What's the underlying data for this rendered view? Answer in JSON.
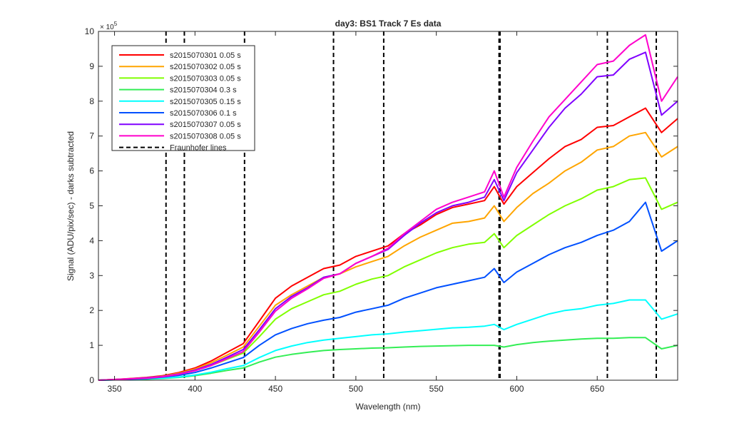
{
  "chart_data": {
    "type": "line",
    "title": "day3: BS1  Track 7 Es data",
    "xlabel": "Wavelength (nm)",
    "ylabel": "Signal (ADU/pix/sec) - darks subtracted",
    "y_exponent_label": "× 10",
    "y_exponent_power": "5",
    "xlim": [
      340,
      700
    ],
    "ylim": [
      0,
      10
    ],
    "y_scale_factor": 100000,
    "xticks": [
      350,
      400,
      450,
      500,
      550,
      600,
      650
    ],
    "yticks": [
      0,
      1,
      2,
      3,
      4,
      5,
      6,
      7,
      8,
      9,
      10
    ],
    "grid": false,
    "legend_position": "top-left",
    "fraunhofer_label": "Fraunhofer lines",
    "fraunhofer_lines": [
      382.0,
      393.4,
      430.8,
      486.1,
      517.3,
      589.0,
      589.6,
      656.3,
      686.7
    ],
    "x": [
      340,
      350,
      360,
      370,
      380,
      390,
      400,
      410,
      420,
      430,
      440,
      450,
      460,
      470,
      480,
      490,
      500,
      510,
      520,
      530,
      540,
      550,
      560,
      570,
      580,
      586,
      592,
      600,
      610,
      620,
      630,
      640,
      650,
      660,
      670,
      680,
      690,
      700
    ],
    "series": [
      {
        "name": "s2015070301 0.05 s",
        "color": "#ff0000",
        "values": [
          0.0,
          0.02,
          0.05,
          0.08,
          0.13,
          0.22,
          0.35,
          0.55,
          0.8,
          1.05,
          1.7,
          2.35,
          2.7,
          2.95,
          3.2,
          3.3,
          3.55,
          3.7,
          3.85,
          4.2,
          4.45,
          4.75,
          4.95,
          5.05,
          5.15,
          5.55,
          5.05,
          5.55,
          5.95,
          6.35,
          6.7,
          6.9,
          7.25,
          7.3,
          7.55,
          7.8,
          7.1,
          7.5
        ]
      },
      {
        "name": "s2015070302 0.05 s",
        "color": "#ffa500",
        "values": [
          0.0,
          0.02,
          0.04,
          0.07,
          0.12,
          0.2,
          0.32,
          0.5,
          0.72,
          0.95,
          1.55,
          2.15,
          2.45,
          2.7,
          2.95,
          3.05,
          3.25,
          3.4,
          3.55,
          3.85,
          4.1,
          4.3,
          4.5,
          4.55,
          4.65,
          5.0,
          4.55,
          4.95,
          5.35,
          5.65,
          6.0,
          6.25,
          6.6,
          6.7,
          7.0,
          7.1,
          6.4,
          6.7
        ]
      },
      {
        "name": "s2015070303 0.05 s",
        "color": "#80ff00",
        "values": [
          0.0,
          0.02,
          0.04,
          0.06,
          0.1,
          0.17,
          0.28,
          0.42,
          0.6,
          0.78,
          1.25,
          1.75,
          2.05,
          2.25,
          2.45,
          2.55,
          2.75,
          2.9,
          3.0,
          3.25,
          3.45,
          3.65,
          3.8,
          3.9,
          3.95,
          4.2,
          3.8,
          4.15,
          4.45,
          4.75,
          5.0,
          5.2,
          5.45,
          5.55,
          5.75,
          5.8,
          4.9,
          5.1
        ]
      },
      {
        "name": "s2015070304 0.3 s",
        "color": "#33ee55",
        "values": [
          0.0,
          0.01,
          0.02,
          0.03,
          0.05,
          0.08,
          0.13,
          0.2,
          0.28,
          0.35,
          0.52,
          0.66,
          0.74,
          0.8,
          0.85,
          0.88,
          0.9,
          0.92,
          0.93,
          0.95,
          0.97,
          0.98,
          0.99,
          1.0,
          1.0,
          1.0,
          0.95,
          1.02,
          1.08,
          1.12,
          1.15,
          1.18,
          1.2,
          1.2,
          1.22,
          1.22,
          0.9,
          1.0
        ]
      },
      {
        "name": "s2015070305 0.15 s",
        "color": "#00ffff",
        "values": [
          0.0,
          0.01,
          0.02,
          0.04,
          0.06,
          0.09,
          0.15,
          0.23,
          0.33,
          0.42,
          0.65,
          0.85,
          0.98,
          1.08,
          1.15,
          1.2,
          1.25,
          1.3,
          1.33,
          1.38,
          1.42,
          1.46,
          1.5,
          1.52,
          1.55,
          1.6,
          1.45,
          1.6,
          1.75,
          1.9,
          2.0,
          2.05,
          2.15,
          2.2,
          2.3,
          2.3,
          1.75,
          1.9
        ]
      },
      {
        "name": "s2015070306 0.1 s",
        "color": "#0050ff",
        "values": [
          0.0,
          0.01,
          0.03,
          0.05,
          0.09,
          0.14,
          0.22,
          0.35,
          0.5,
          0.65,
          1.0,
          1.3,
          1.48,
          1.62,
          1.72,
          1.8,
          1.95,
          2.05,
          2.15,
          2.35,
          2.5,
          2.65,
          2.75,
          2.85,
          2.95,
          3.2,
          2.8,
          3.1,
          3.35,
          3.6,
          3.8,
          3.95,
          4.15,
          4.3,
          4.55,
          5.1,
          3.7,
          4.0
        ]
      },
      {
        "name": "s2015070307 0.05 s",
        "color": "#8000ff",
        "values": [
          0.0,
          0.02,
          0.04,
          0.07,
          0.11,
          0.18,
          0.29,
          0.45,
          0.66,
          0.88,
          1.45,
          2.05,
          2.4,
          2.65,
          2.95,
          3.05,
          3.35,
          3.55,
          3.75,
          4.15,
          4.5,
          4.8,
          5.0,
          5.1,
          5.25,
          5.75,
          5.15,
          5.95,
          6.6,
          7.25,
          7.8,
          8.2,
          8.7,
          8.75,
          9.2,
          9.4,
          7.6,
          8.0
        ]
      },
      {
        "name": "s2015070308 0.05 s",
        "color": "#ff00cc",
        "values": [
          0.0,
          0.02,
          0.04,
          0.06,
          0.1,
          0.17,
          0.27,
          0.42,
          0.62,
          0.82,
          1.38,
          1.98,
          2.35,
          2.62,
          2.92,
          3.05,
          3.35,
          3.55,
          3.78,
          4.2,
          4.55,
          4.9,
          5.1,
          5.25,
          5.4,
          6.0,
          5.25,
          6.1,
          6.85,
          7.55,
          8.05,
          8.55,
          9.05,
          9.15,
          9.6,
          9.9,
          8.0,
          8.7
        ]
      }
    ]
  }
}
